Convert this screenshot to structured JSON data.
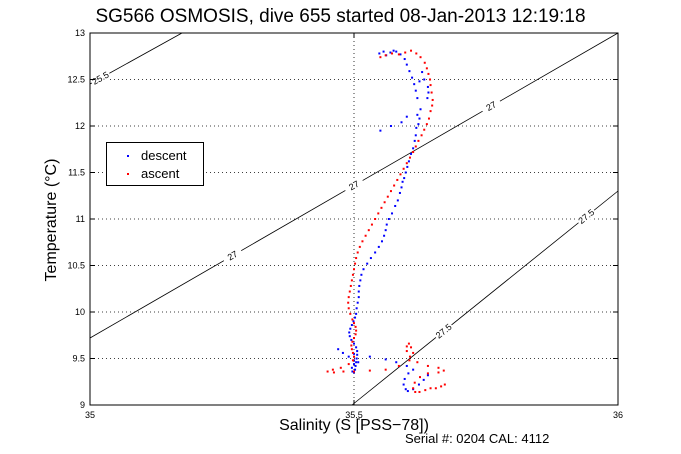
{
  "chart_data": {
    "type": "scatter",
    "title": "SG566 OSMOSIS, dive 655 started 08-Jan-2013 12:19:18",
    "xlabel": "Salinity (S [PSS−78])",
    "ylabel": "Temperature (°C)",
    "xlim": [
      35,
      36
    ],
    "ylim": [
      9,
      13
    ],
    "xticks": [
      "35",
      "35.5",
      "36"
    ],
    "yticks": [
      "9",
      "9.5",
      "10",
      "10.5",
      "11",
      "11.5",
      "12",
      "12.5",
      "13"
    ],
    "grid": true,
    "legend_position": "upper-left",
    "footer": "Serial #: 0204  CAL: 4112",
    "series": [
      {
        "name": "descent",
        "color": "#0000ff",
        "x": [
          35.548,
          35.556,
          35.561,
          35.569,
          35.575,
          35.58,
          35.588,
          35.596,
          35.6,
          35.605,
          35.61,
          35.614,
          35.617,
          35.62,
          35.624,
          35.629,
          35.633,
          35.64,
          35.641,
          35.639,
          35.626,
          35.624,
          35.622,
          35.62,
          35.618,
          35.617,
          35.615,
          35.612,
          35.608,
          35.604,
          35.601,
          35.598,
          35.595,
          35.592,
          35.59,
          35.587,
          35.583,
          35.578,
          35.572,
          35.566,
          35.562,
          35.56,
          35.557,
          35.553,
          35.547,
          35.54,
          35.532,
          35.525,
          35.518,
          35.514,
          35.512,
          35.51,
          35.509,
          35.509,
          35.507,
          35.505,
          35.504,
          35.502,
          35.499,
          35.496,
          35.493,
          35.491,
          35.492,
          35.495,
          35.5,
          35.504,
          35.506,
          35.506,
          35.505,
          35.504,
          35.503,
          35.502,
          35.5,
          35.497,
          35.496,
          35.5,
          35.508,
          35.5,
          35.49,
          35.479,
          35.47,
          35.5,
          35.53,
          35.56,
          35.58,
          35.6,
          35.612,
          35.603,
          35.596,
          35.594,
          35.598,
          35.602,
          35.612,
          35.623,
          35.632,
          35.64,
          35.6,
          35.59,
          35.57,
          35.55
        ],
        "y": [
          12.78,
          12.8,
          12.76,
          12.79,
          12.81,
          12.8,
          12.77,
          12.72,
          12.66,
          12.59,
          12.52,
          12.45,
          12.38,
          12.3,
          12.48,
          12.58,
          12.5,
          12.42,
          12.36,
          12.3,
          12.18,
          12.08,
          12.02,
          12.12,
          11.98,
          11.9,
          11.84,
          11.76,
          11.7,
          11.62,
          11.56,
          11.5,
          11.44,
          11.4,
          11.34,
          11.28,
          11.2,
          11.14,
          11.06,
          11.0,
          10.94,
          10.88,
          10.82,
          10.76,
          10.7,
          10.64,
          10.58,
          10.52,
          10.46,
          10.4,
          10.34,
          10.28,
          10.22,
          10.16,
          10.1,
          10.04,
          9.98,
          9.94,
          9.9,
          9.86,
          9.82,
          9.78,
          9.74,
          9.7,
          9.66,
          9.62,
          9.58,
          9.54,
          9.5,
          9.46,
          9.42,
          9.38,
          9.35,
          9.36,
          9.4,
          9.44,
          9.46,
          9.48,
          9.52,
          9.56,
          9.6,
          9.55,
          9.52,
          9.49,
          9.46,
          9.42,
          9.38,
          9.34,
          9.28,
          9.22,
          9.17,
          9.15,
          9.17,
          9.22,
          9.27,
          9.32,
          12.1,
          12.04,
          12.0,
          11.95
        ]
      },
      {
        "name": "ascent",
        "color": "#ff0000",
        "x": [
          35.55,
          35.56,
          35.572,
          35.585,
          35.597,
          35.608,
          35.618,
          35.626,
          35.634,
          35.638,
          35.641,
          35.644,
          35.645,
          35.647,
          35.649,
          35.648,
          35.645,
          35.642,
          35.638,
          35.633,
          35.628,
          35.622,
          35.617,
          35.612,
          35.606,
          35.6,
          35.594,
          35.588,
          35.582,
          35.576,
          35.57,
          35.564,
          35.558,
          35.552,
          35.546,
          35.54,
          35.534,
          35.528,
          35.522,
          35.516,
          35.511,
          35.507,
          35.504,
          35.502,
          35.5,
          35.498,
          35.496,
          35.494,
          35.492,
          35.49,
          35.489,
          35.49,
          35.493,
          35.497,
          35.5,
          35.503,
          35.504,
          35.503,
          35.5,
          35.497,
          35.495,
          35.496,
          35.498,
          35.5,
          35.498,
          35.49,
          35.475,
          35.46,
          35.45,
          35.462,
          35.48,
          35.5,
          35.53,
          35.56,
          35.585,
          35.605,
          35.612,
          35.608,
          35.604,
          35.6,
          35.6,
          35.606,
          35.62,
          35.64,
          35.66,
          35.67,
          35.66,
          35.64,
          35.625,
          35.615,
          35.612,
          35.616,
          35.624,
          35.635,
          35.645,
          35.655,
          35.665,
          35.672
        ],
        "y": [
          12.74,
          12.76,
          12.78,
          12.77,
          12.79,
          12.81,
          12.78,
          12.74,
          12.68,
          12.62,
          12.56,
          12.5,
          12.44,
          12.36,
          12.28,
          12.22,
          12.16,
          12.08,
          12.02,
          11.96,
          11.9,
          11.84,
          11.78,
          11.72,
          11.66,
          11.6,
          11.54,
          11.48,
          11.42,
          11.36,
          11.3,
          11.24,
          11.18,
          11.12,
          11.06,
          11.0,
          10.94,
          10.88,
          10.82,
          10.76,
          10.7,
          10.64,
          10.58,
          10.52,
          10.46,
          10.4,
          10.34,
          10.28,
          10.22,
          10.16,
          10.1,
          10.04,
          9.98,
          9.92,
          9.88,
          9.84,
          9.8,
          9.76,
          9.72,
          9.68,
          9.64,
          9.6,
          9.56,
          9.52,
          9.48,
          9.44,
          9.4,
          9.38,
          9.36,
          9.35,
          9.36,
          9.36,
          9.37,
          9.38,
          9.42,
          9.48,
          9.56,
          9.62,
          9.66,
          9.63,
          9.58,
          9.52,
          9.46,
          9.42,
          9.4,
          9.37,
          9.35,
          9.34,
          9.3,
          9.24,
          9.18,
          9.14,
          9.14,
          9.16,
          9.18,
          9.18,
          9.2,
          9.22
        ]
      }
    ],
    "density_contours": [
      {
        "label": "25.5",
        "label_x": 35.02
      },
      {
        "label": "27",
        "label_x": 35.27
      },
      {
        "label": "27",
        "label_x": 35.5
      },
      {
        "label": "27",
        "label_x": 35.76
      },
      {
        "label": "27.5",
        "label_x": 35.67
      },
      {
        "label": "27.5",
        "label_x": 35.94
      }
    ]
  }
}
